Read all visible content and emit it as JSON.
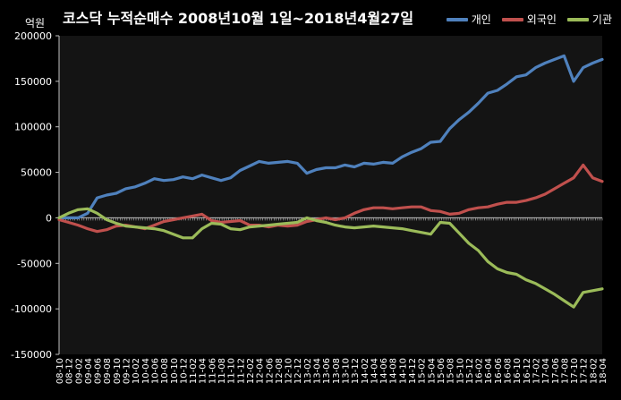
{
  "title": "코스닥 누적순매수 2008년10월 1일~2018년4월27일",
  "unit_label": "억원",
  "chart_data": {
    "type": "line",
    "title": "코스닥 누적순매수 2008년10월 1일~2018년4월27일",
    "ylabel": "억원",
    "ylim": [
      -150000,
      200000
    ],
    "yticks": [
      -150000,
      -100000,
      -50000,
      0,
      50000,
      100000,
      150000,
      200000
    ],
    "xticks": [
      "08-10",
      "08-12",
      "09-02",
      "09-04",
      "09-06",
      "09-08",
      "09-10",
      "09-12",
      "10-02",
      "10-04",
      "10-06",
      "10-08",
      "10-10",
      "10-12",
      "11-02",
      "11-04",
      "11-06",
      "11-08",
      "11-10",
      "11-12",
      "12-02",
      "12-04",
      "12-06",
      "12-08",
      "12-10",
      "12-12",
      "13-02",
      "13-04",
      "13-06",
      "13-08",
      "13-10",
      "13-12",
      "14-02",
      "14-04",
      "14-06",
      "14-08",
      "14-10",
      "14-12",
      "15-02",
      "15-04",
      "15-06",
      "15-08",
      "15-10",
      "15-12",
      "16-02",
      "16-04",
      "16-06",
      "16-08",
      "16-10",
      "16-12",
      "17-02",
      "17-04",
      "17-06",
      "17-08",
      "17-10",
      "17-12",
      "18-02",
      "18-04"
    ],
    "grid": false,
    "legend_position": "top-right",
    "series": [
      {
        "name": "개인",
        "color": "#4f81bd",
        "values": [
          0,
          0,
          0,
          5000,
          22000,
          25000,
          27000,
          32000,
          34000,
          38000,
          43000,
          41000,
          42000,
          45000,
          43000,
          47000,
          44000,
          41000,
          44000,
          52000,
          57000,
          62000,
          60000,
          61000,
          62000,
          60000,
          49000,
          53000,
          55000,
          55000,
          58000,
          56000,
          60000,
          59000,
          61000,
          60000,
          67000,
          72000,
          76000,
          83000,
          84000,
          98000,
          108000,
          116000,
          126000,
          137000,
          140000,
          147000,
          155000,
          157000,
          165000,
          170000,
          174000,
          178000,
          150000,
          165000,
          170000,
          174000
        ]
      },
      {
        "name": "외국인",
        "color": "#c0504d",
        "values": [
          -2000,
          -5000,
          -8000,
          -12000,
          -15000,
          -13000,
          -9000,
          -8000,
          -10000,
          -12000,
          -8000,
          -4000,
          -2000,
          0,
          2000,
          4000,
          -3000,
          -5000,
          -4000,
          -3000,
          -8000,
          -8000,
          -10000,
          -8000,
          -9000,
          -8000,
          -4000,
          -2000,
          0,
          -2000,
          0,
          5000,
          9000,
          11000,
          11000,
          10000,
          11000,
          12000,
          12000,
          8000,
          7000,
          4000,
          5000,
          9000,
          11000,
          12000,
          15000,
          17000,
          17000,
          19000,
          22000,
          26000,
          32000,
          38000,
          44000,
          58000,
          44000,
          40000
        ]
      },
      {
        "name": "기관",
        "color": "#9bbb59",
        "values": [
          0,
          5000,
          9000,
          10000,
          5000,
          -2000,
          -6000,
          -9000,
          -10000,
          -11000,
          -12000,
          -14000,
          -18000,
          -22000,
          -22000,
          -12000,
          -6000,
          -7000,
          -12000,
          -13000,
          -10000,
          -9000,
          -8000,
          -7000,
          -6000,
          -5000,
          0,
          -3000,
          -5000,
          -8000,
          -10000,
          -11000,
          -10000,
          -9000,
          -10000,
          -11000,
          -12000,
          -14000,
          -16000,
          -18000,
          -5000,
          -6000,
          -17000,
          -28000,
          -36000,
          -48000,
          -56000,
          -60000,
          -62000,
          -68000,
          -72000,
          -78000,
          -84000,
          -91000,
          -98000,
          -82000,
          -80000,
          -78000
        ]
      }
    ]
  }
}
